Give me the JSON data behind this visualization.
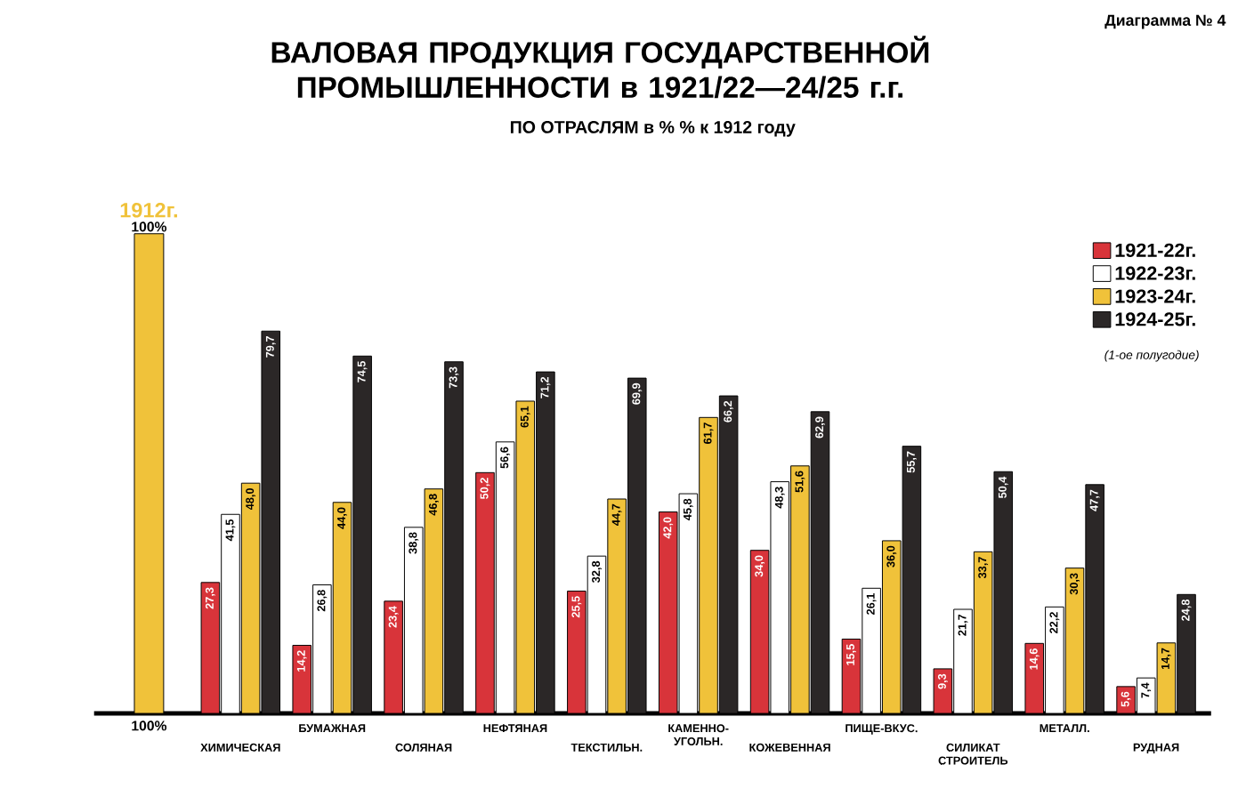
{
  "chart_data": {
    "type": "bar",
    "title": "ВАЛОВАЯ ПРОДУКЦИЯ ГОСУДАРСТВЕННОЙ ПРОМЫШЛЕННОСТИ в 1921/22—24/25 г.г.",
    "subtitle": "ПО ОТРАСЛЯМ в % % к 1912 году",
    "categories": [
      null,
      "ХИМИЧЕСКАЯ",
      "БУМАЖНАЯ",
      "СОЛЯНАЯ",
      "НЕФТЯНАЯ",
      "ТЕКСТИЛЬН.",
      "КАМЕННО-УГОЛЬН.",
      "КОЖЕВЕННАЯ",
      "ПИЩЕ-ВКУС.",
      "СИЛИКАТ СТРОИТЕЛЬ",
      "МЕТАЛЛ.",
      "РУДНАЯ"
    ],
    "series": [
      {
        "name": "1912г.",
        "color": "#f0c23a",
        "values": [
          100,
          null,
          null,
          null,
          null,
          null,
          null,
          null,
          null,
          null,
          null,
          null
        ],
        "value_labels": [
          null,
          null,
          null,
          null,
          null,
          null,
          null,
          null,
          null,
          null,
          null,
          null
        ]
      },
      {
        "name": "1921-22г.",
        "color": "#d8343a",
        "values": [
          null,
          27.3,
          14.2,
          23.4,
          50.2,
          25.5,
          42.0,
          34.0,
          15.5,
          9.3,
          14.6,
          5.6
        ],
        "value_labels": [
          null,
          "27,3",
          "14,2",
          "23,4",
          "50,2",
          "25,5",
          "42,0",
          "34,0",
          "15,5",
          "9,3",
          "14,6",
          "5,6"
        ]
      },
      {
        "name": "1922-23г.",
        "color": "#ffffff",
        "values": [
          null,
          41.5,
          26.8,
          38.8,
          56.6,
          32.8,
          45.8,
          48.3,
          26.1,
          21.7,
          22.2,
          7.4
        ],
        "value_labels": [
          null,
          "41,5",
          "26,8",
          "38,8",
          "56,6",
          "32,8",
          "45,8",
          "48,3",
          "26,1",
          "21,7",
          "22,2",
          "7,4"
        ]
      },
      {
        "name": "1923-24г.",
        "color": "#f0c23a",
        "values": [
          null,
          48.0,
          44.0,
          46.8,
          65.1,
          44.7,
          61.7,
          51.6,
          36.0,
          33.7,
          30.3,
          14.7
        ],
        "value_labels": [
          null,
          "48,0",
          "44,0",
          "46,8",
          "65,1",
          "44,7",
          "61,7",
          "51,6",
          "36,0",
          "33,7",
          "30,3",
          "14,7"
        ]
      },
      {
        "name": "1924-25г.",
        "color": "#2b2727",
        "values": [
          null,
          79.7,
          74.5,
          73.3,
          71.2,
          69.9,
          66.2,
          62.9,
          55.7,
          50.4,
          47.7,
          24.8
        ],
        "value_labels": [
          null,
          "79,7",
          "74,5",
          "73,3",
          "71,2",
          "69,9",
          "66,2",
          "62,9",
          "55,7",
          "50,4",
          "47,7",
          "24,8"
        ]
      }
    ],
    "ylim": [
      0,
      100
    ],
    "tick_labels": "x",
    "legend": "top right",
    "annotations": [
      "Диаграмма № 4",
      "100%",
      "100%",
      "(1-ое полугодие)"
    ]
  }
}
